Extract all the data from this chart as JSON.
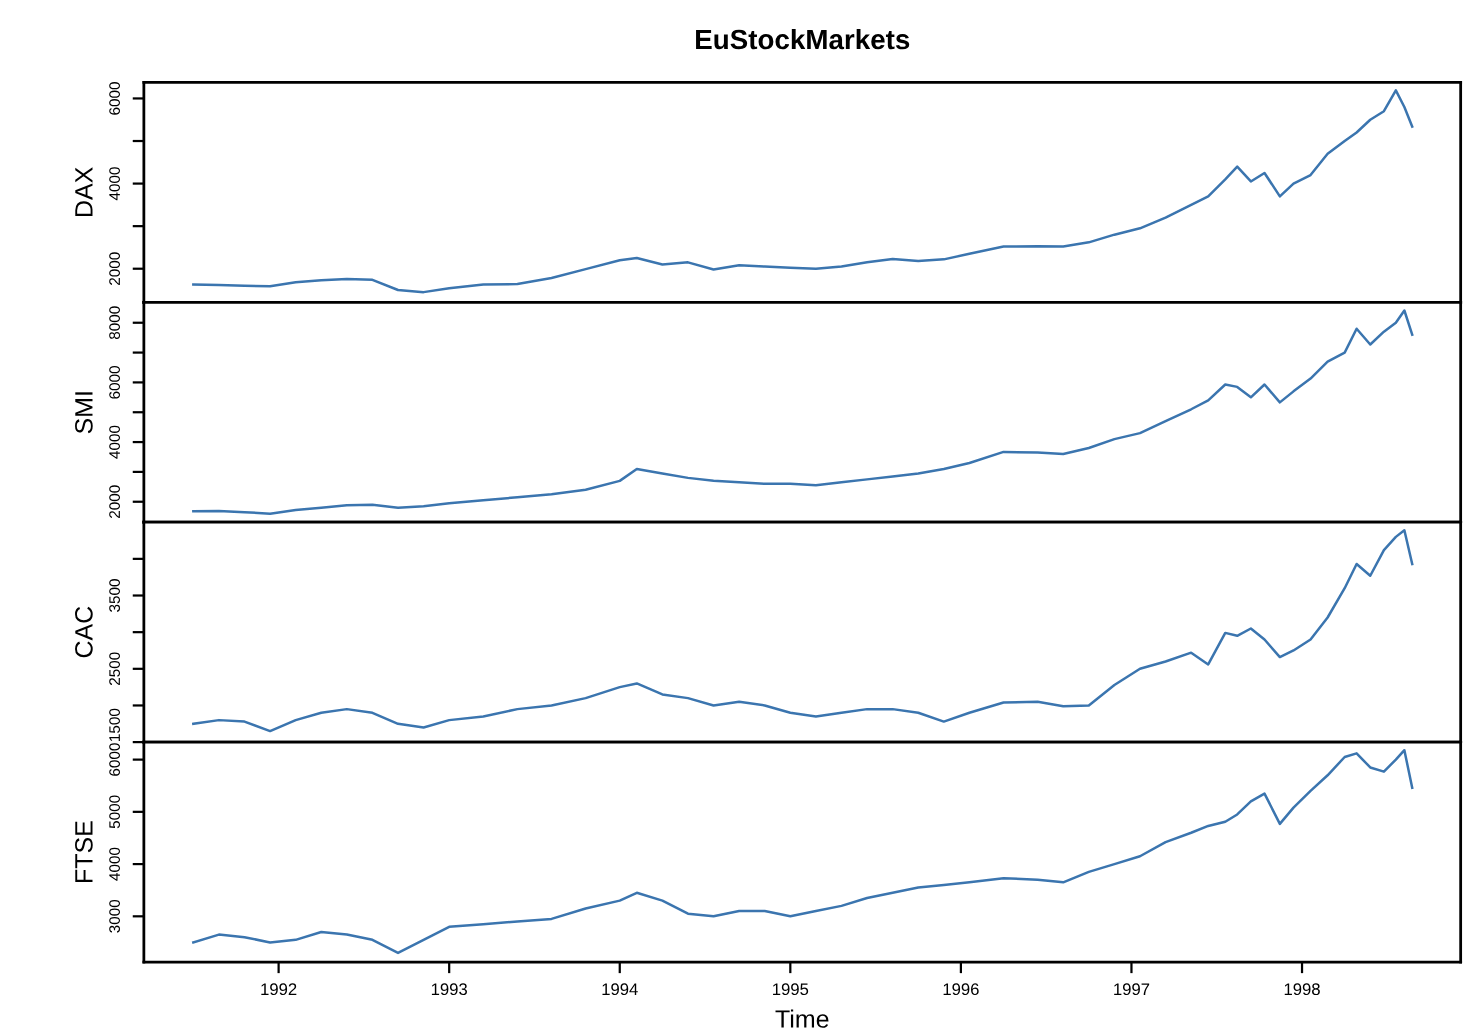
{
  "chart_data": [
    {
      "type": "line",
      "title": "EuStockMarkets",
      "ylabel": "DAX",
      "tick_labels": "y",
      "grid": false,
      "legend": false,
      "xlim": [
        1991.21,
        1998.93
      ],
      "ylim": [
        1211,
        6377
      ],
      "yticks": [
        2000,
        {
          "value": 3000,
          "label": null
        },
        4000,
        {
          "value": 5000,
          "label": null
        },
        6000
      ],
      "x": [
        1991.5,
        1991.65,
        1991.8,
        1991.95,
        1992.1,
        1992.25,
        1992.4,
        1992.55,
        1992.7,
        1992.85,
        1993.0,
        1993.2,
        1993.4,
        1993.6,
        1993.8,
        1994.0,
        1994.1,
        1994.25,
        1994.4,
        1994.55,
        1994.7,
        1994.85,
        1995.0,
        1995.15,
        1995.3,
        1995.45,
        1995.6,
        1995.75,
        1995.9,
        1996.05,
        1996.25,
        1996.45,
        1996.6,
        1996.75,
        1996.9,
        1997.05,
        1997.2,
        1997.35,
        1997.45,
        1997.55,
        1997.62,
        1997.7,
        1997.78,
        1997.87,
        1997.95,
        1998.05,
        1998.15,
        1998.25,
        1998.32,
        1998.4,
        1998.48,
        1998.55,
        1998.6,
        1998.646
      ],
      "series": [
        {
          "color": "#3b75af",
          "values": [
            1630,
            1620,
            1600,
            1590,
            1680,
            1730,
            1760,
            1740,
            1500,
            1450,
            1540,
            1630,
            1640,
            1780,
            1990,
            2200,
            2250,
            2100,
            2150,
            1980,
            2080,
            2050,
            2020,
            2000,
            2050,
            2150,
            2230,
            2180,
            2220,
            2350,
            2520,
            2530,
            2520,
            2620,
            2800,
            2950,
            3200,
            3500,
            3700,
            4100,
            4400,
            4050,
            4250,
            3700,
            4000,
            4200,
            4700,
            5000,
            5200,
            5500,
            5700,
            6190,
            5800,
            5340
          ]
        }
      ]
    },
    {
      "type": "line",
      "ylabel": "SMI",
      "tick_labels": "y",
      "grid": false,
      "legend": false,
      "xlim": [
        1991.21,
        1998.93
      ],
      "ylim": [
        1314,
        8685
      ],
      "yticks": [
        2000,
        {
          "value": 3000,
          "label": null
        },
        4000,
        {
          "value": 5000,
          "label": null
        },
        6000,
        {
          "value": 7000,
          "label": null
        },
        8000
      ],
      "x": [
        1991.5,
        1991.65,
        1991.8,
        1991.95,
        1992.1,
        1992.25,
        1992.4,
        1992.55,
        1992.7,
        1992.85,
        1993.0,
        1993.2,
        1993.4,
        1993.6,
        1993.8,
        1994.0,
        1994.1,
        1994.25,
        1994.4,
        1994.55,
        1994.7,
        1994.85,
        1995.0,
        1995.15,
        1995.3,
        1995.45,
        1995.6,
        1995.75,
        1995.9,
        1996.05,
        1996.25,
        1996.45,
        1996.6,
        1996.75,
        1996.9,
        1997.05,
        1997.2,
        1997.35,
        1997.45,
        1997.55,
        1997.62,
        1997.7,
        1997.78,
        1997.87,
        1997.95,
        1998.05,
        1998.15,
        1998.25,
        1998.32,
        1998.4,
        1998.48,
        1998.55,
        1998.6,
        1998.646
      ],
      "series": [
        {
          "color": "#3b75af",
          "values": [
            1680,
            1690,
            1650,
            1600,
            1720,
            1800,
            1880,
            1900,
            1800,
            1850,
            1950,
            2050,
            2150,
            2250,
            2400,
            2700,
            3100,
            2950,
            2800,
            2700,
            2650,
            2600,
            2600,
            2550,
            2650,
            2750,
            2850,
            2950,
            3100,
            3300,
            3670,
            3650,
            3600,
            3800,
            4100,
            4300,
            4700,
            5100,
            5400,
            5930,
            5850,
            5500,
            5930,
            5330,
            5700,
            6130,
            6700,
            7000,
            7800,
            7270,
            7700,
            8000,
            8410,
            7600
          ]
        }
      ]
    },
    {
      "type": "line",
      "ylabel": "CAC",
      "tick_labels": "y",
      "grid": false,
      "legend": false,
      "xlim": [
        1991.21,
        1998.93
      ],
      "ylim": [
        1500,
        4500
      ],
      "yticks": [
        1500,
        {
          "value": 2000,
          "label": null
        },
        2500,
        {
          "value": 3000,
          "label": null
        },
        3500,
        {
          "value": 4000,
          "label": null
        }
      ],
      "x": [
        1991.5,
        1991.65,
        1991.8,
        1991.95,
        1992.1,
        1992.25,
        1992.4,
        1992.55,
        1992.7,
        1992.85,
        1993.0,
        1993.2,
        1993.4,
        1993.6,
        1993.8,
        1994.0,
        1994.1,
        1994.25,
        1994.4,
        1994.55,
        1994.7,
        1994.85,
        1995.0,
        1995.15,
        1995.3,
        1995.45,
        1995.6,
        1995.75,
        1995.9,
        1996.05,
        1996.25,
        1996.45,
        1996.6,
        1996.75,
        1996.9,
        1997.05,
        1997.2,
        1997.35,
        1997.45,
        1997.55,
        1997.62,
        1997.7,
        1997.78,
        1997.87,
        1997.95,
        1998.05,
        1998.15,
        1998.25,
        1998.32,
        1998.4,
        1998.48,
        1998.55,
        1998.6,
        1998.646
      ],
      "series": [
        {
          "color": "#3b75af",
          "values": [
            1750,
            1800,
            1780,
            1650,
            1800,
            1900,
            1950,
            1900,
            1750,
            1700,
            1800,
            1850,
            1950,
            2000,
            2100,
            2250,
            2300,
            2150,
            2100,
            2000,
            2050,
            2000,
            1900,
            1850,
            1900,
            1950,
            1950,
            1900,
            1780,
            1900,
            2040,
            2050,
            1990,
            2000,
            2280,
            2500,
            2600,
            2720,
            2560,
            2990,
            2950,
            3050,
            2900,
            2660,
            2750,
            2900,
            3200,
            3600,
            3930,
            3770,
            4120,
            4300,
            4390,
            3930
          ]
        }
      ]
    },
    {
      "type": "line",
      "ylabel": "FTSE",
      "xlabel": "Time",
      "grid": false,
      "legend": false,
      "xlim": [
        1991.21,
        1998.93
      ],
      "ylim": [
        2125,
        6335
      ],
      "xticks": [
        1992,
        1993,
        1994,
        1995,
        1996,
        1997,
        1998
      ],
      "yticks": [
        3000,
        4000,
        5000,
        6000
      ],
      "x": [
        1991.5,
        1991.65,
        1991.8,
        1991.95,
        1992.1,
        1992.25,
        1992.4,
        1992.55,
        1992.7,
        1992.85,
        1993.0,
        1993.2,
        1993.4,
        1993.6,
        1993.8,
        1994.0,
        1994.1,
        1994.25,
        1994.4,
        1994.55,
        1994.7,
        1994.85,
        1995.0,
        1995.15,
        1995.3,
        1995.45,
        1995.6,
        1995.75,
        1995.9,
        1996.05,
        1996.25,
        1996.45,
        1996.6,
        1996.75,
        1996.9,
        1997.05,
        1997.2,
        1997.35,
        1997.45,
        1997.55,
        1997.62,
        1997.7,
        1997.78,
        1997.87,
        1997.95,
        1998.05,
        1998.15,
        1998.25,
        1998.32,
        1998.4,
        1998.48,
        1998.55,
        1998.6,
        1998.646
      ],
      "series": [
        {
          "color": "#3b75af",
          "values": [
            2500,
            2650,
            2600,
            2500,
            2550,
            2700,
            2650,
            2550,
            2300,
            2550,
            2800,
            2850,
            2900,
            2950,
            3150,
            3300,
            3450,
            3300,
            3050,
            3000,
            3100,
            3100,
            3000,
            3100,
            3200,
            3350,
            3450,
            3550,
            3600,
            3650,
            3730,
            3700,
            3650,
            3850,
            4000,
            4150,
            4420,
            4600,
            4730,
            4810,
            4950,
            5200,
            5350,
            4770,
            5080,
            5400,
            5700,
            6050,
            6120,
            5850,
            5770,
            6000,
            6180,
            5460
          ]
        }
      ]
    }
  ]
}
